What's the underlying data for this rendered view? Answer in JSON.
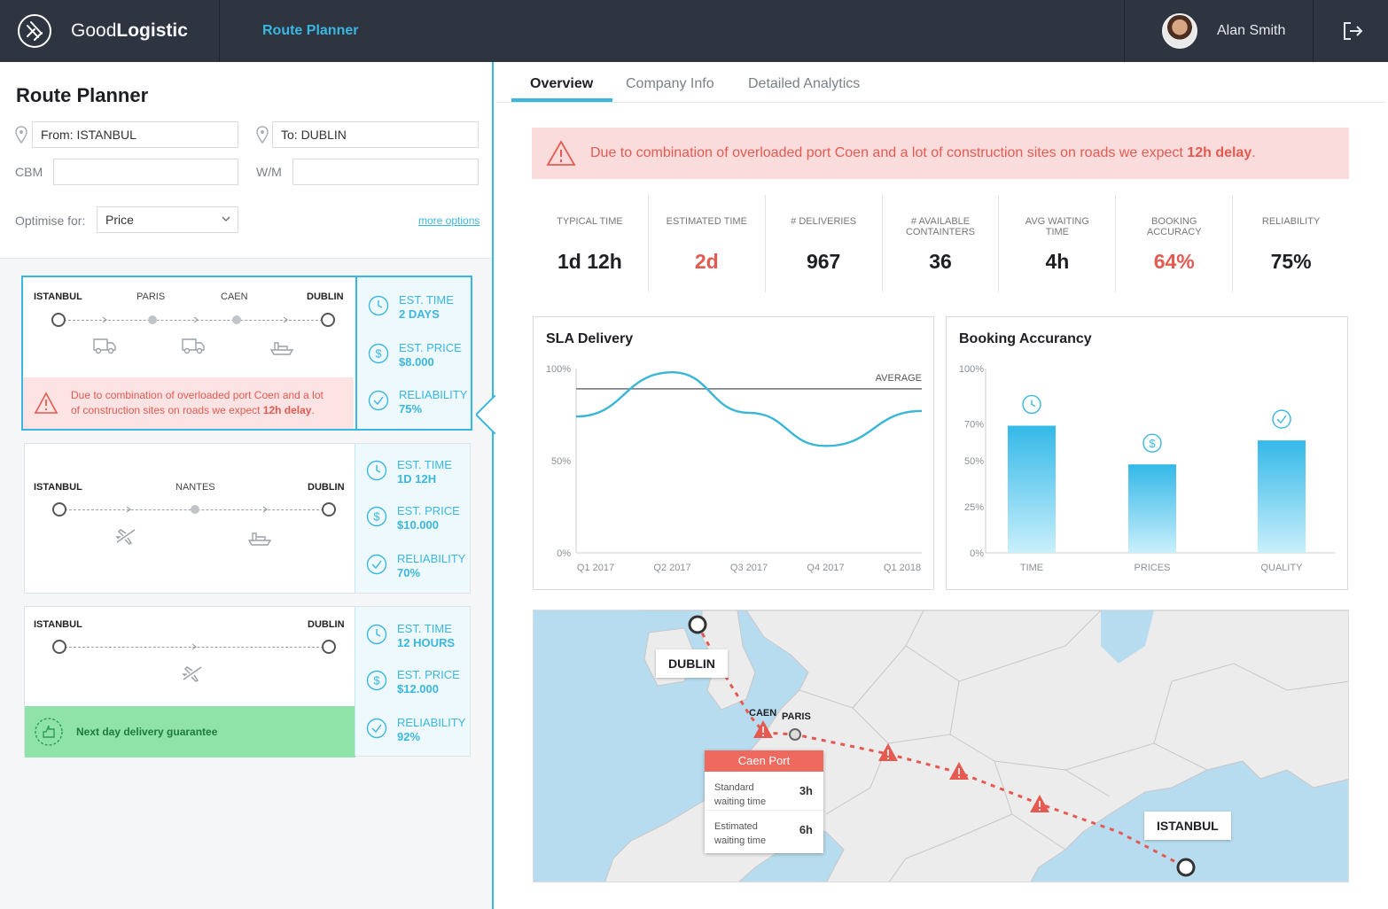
{
  "app": {
    "brand_light": "Good",
    "brand_bold": "Logistic",
    "nav_active": "Route Planner"
  },
  "user": {
    "name": "Alan Smith"
  },
  "icons": {
    "logo": "logo-icon",
    "logout": "logout-icon",
    "pin": "location-pin-icon",
    "clock": "clock-icon",
    "dollar": "dollar-icon",
    "check": "check-icon",
    "warning": "warning-icon",
    "truck": "truck-icon",
    "ship": "ship-icon",
    "plane": "plane-icon",
    "guarantee": "badge-icon"
  },
  "colors": {
    "accent": "#3ab7e0",
    "danger": "#e55a50",
    "success_bg": "#8fe3a9",
    "topbar": "#2e3440"
  },
  "planner": {
    "title": "Route Planner",
    "from_value": "From: ISTANBUL",
    "to_value": "To: DUBLIN",
    "cbm_label": "CBM",
    "cbm_value": "",
    "wm_label": "W/M",
    "wm_value": "",
    "optimise_label": "Optimise for:",
    "optimise_value": "Price",
    "more_options": "more options"
  },
  "routes": [
    {
      "stops": [
        "ISTANBUL",
        "PARIS",
        "CAEN",
        "DUBLIN"
      ],
      "warning_line1": "Due to combination of overloaded port Coen and a lot",
      "warning_line2_pre": "of construction sites on roads we expect ",
      "warning_line2_bold": "12h delay",
      "warning_line2_post": ".",
      "est_time_label": "EST. TIME",
      "est_time": "2 days",
      "est_price_label": "EST. PRICE",
      "est_price": "$8.000",
      "reliability_label": "RELIABILITY",
      "reliability": "75%"
    },
    {
      "stops": [
        "ISTANBUL",
        "NANTES",
        "DUBLIN"
      ],
      "est_time_label": "EST. TIME",
      "est_time": "1d 12h",
      "est_price_label": "EST. PRICE",
      "est_price": "$10.000",
      "reliability_label": "RELIABILITY",
      "reliability": "70%"
    },
    {
      "stops": [
        "ISTANBUL",
        "DUBLIN"
      ],
      "guarantee": "Next day delivery guarantee",
      "est_time_label": "EST. TIME",
      "est_time": "12 hours",
      "est_price_label": "EST. PRICE",
      "est_price": "$12.000",
      "reliability_label": "RELIABILITY",
      "reliability": "92%"
    }
  ],
  "tabs": [
    "Overview",
    "Company Info",
    "Detailed Analytics"
  ],
  "alert": {
    "pre": "Due to combination of overloaded port Coen and a lot of construction sites on roads we expect ",
    "bold": "12h delay",
    "post": "."
  },
  "metrics": [
    {
      "label": "TYPICAL TIME",
      "value": "1d 12h"
    },
    {
      "label": "ESTIMATED TIME",
      "value": "2d"
    },
    {
      "label": "# DELIVERIES",
      "value": "967"
    },
    {
      "label": "# AVAILABLE CONTAINTERS",
      "value": "36"
    },
    {
      "label": "AVG WAITING TIME",
      "value": "4h"
    },
    {
      "label": "BOOKING ACCURACY",
      "value": "64%"
    },
    {
      "label": "RELIABILITY",
      "value": "75%"
    }
  ],
  "chart_data": [
    {
      "type": "line",
      "title": "SLA Delivery",
      "x": [
        "Q1 2017",
        "Q2 2017",
        "Q3 2017",
        "Q4 2017",
        "Q1 2018"
      ],
      "y_ticks": [
        "100%",
        "50%",
        "0%"
      ],
      "ylim": [
        0,
        100
      ],
      "series": [
        {
          "values": [
            74,
            98,
            76,
            58,
            77
          ]
        }
      ],
      "reference_line": {
        "label": "AVERAGE",
        "value": 89
      },
      "grid": false
    },
    {
      "type": "bar",
      "title": "Booking Accurancy",
      "categories": [
        "TIME",
        "PRICES",
        "QUALITY"
      ],
      "values": [
        69,
        48,
        61
      ],
      "category_icons": [
        "clock-icon",
        "dollar-icon",
        "check-icon"
      ],
      "y_ticks": [
        "100%",
        "70%",
        "50%",
        "25%",
        "0%"
      ],
      "ylim": [
        0,
        100
      ],
      "grid": false
    }
  ],
  "map": {
    "cities": {
      "dublin": "DUBLIN",
      "caen": "CAEN",
      "paris": "PARIS",
      "istanbul": "ISTANBUL"
    },
    "port_popup": {
      "title": "Caen Port",
      "rows": [
        {
          "label_1": "Standard",
          "label_2": "waiting time",
          "value": "3h"
        },
        {
          "label_1": "Estimated",
          "label_2": "waiting time",
          "value": "6h"
        }
      ]
    }
  }
}
